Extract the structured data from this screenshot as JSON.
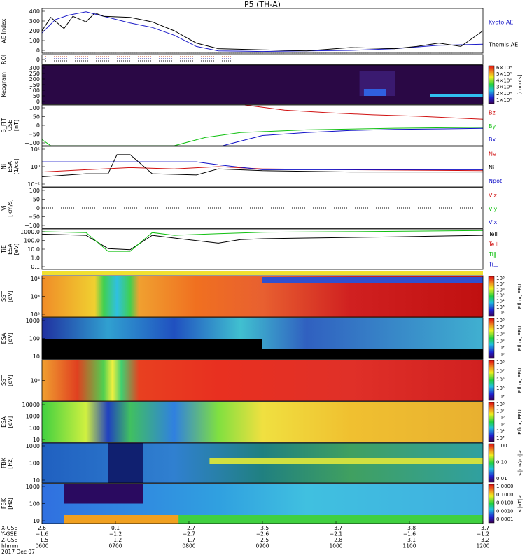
{
  "chart_data": {
    "type": "line",
    "title": "P5 (TH-A)",
    "panels": [
      {
        "id": "ae",
        "type": "line",
        "ylabel": [
          "AE Index"
        ],
        "ylim": [
          0,
          400
        ],
        "yticks": [
          "400",
          "300",
          "200",
          "100",
          "0"
        ],
        "legend": [
          {
            "label": "Kyoto AE",
            "color": "#1c1cc8"
          },
          {
            "label": "Themis AE",
            "color": "#000000"
          }
        ],
        "series": [
          {
            "name": "Kyoto AE",
            "color": "#1c1cc8",
            "x": [
              0,
              0.03,
              0.06,
              0.1,
              0.13,
              0.17,
              0.2,
              0.25,
              0.3,
              0.35,
              0.4,
              0.45,
              0.5,
              0.6,
              0.7,
              0.8,
              0.9,
              1.0
            ],
            "y": [
              180,
              300,
              340,
              370,
              340,
              300,
              270,
              230,
              160,
              60,
              20,
              18,
              15,
              20,
              25,
              40,
              70,
              80
            ]
          },
          {
            "name": "Themis AE",
            "color": "#000000",
            "x": [
              0,
              0.02,
              0.05,
              0.07,
              0.1,
              0.12,
              0.14,
              0.2,
              0.25,
              0.3,
              0.35,
              0.4,
              0.5,
              0.6,
              0.7,
              0.8,
              0.85,
              0.9,
              0.95,
              1.0
            ],
            "y": [
              200,
              320,
              220,
              330,
              280,
              360,
              330,
              320,
              280,
              200,
              90,
              40,
              30,
              20,
              50,
              40,
              60,
              90,
              60,
              200
            ]
          }
        ]
      },
      {
        "id": "roi",
        "type": "flags",
        "ylabel": [
          "ROI"
        ],
        "yticks": [
          "0"
        ]
      },
      {
        "id": "keogram",
        "type": "heatmap",
        "ylabel": [
          "Keogram"
        ],
        "ylim": [
          0,
          300
        ],
        "yticks": [
          "300",
          "250",
          "200",
          "150",
          "100",
          "50",
          "0"
        ],
        "colorbar": {
          "label": "[counts]",
          "ticks": [
            "6×10⁴",
            "5×10⁴",
            "4×10⁴",
            "3×10⁴",
            "2×10⁴",
            "1×10⁴"
          ]
        }
      },
      {
        "id": "bfit",
        "type": "line",
        "ylabel": [
          "B_FIT",
          "GSE",
          "[nT]"
        ],
        "ylim": [
          -100,
          100
        ],
        "yticks": [
          "100",
          "50",
          "0",
          "−50",
          "−100"
        ],
        "legend": [
          {
            "label": "Bz",
            "color": "#d01010"
          },
          {
            "label": "By",
            "color": "#10c010"
          },
          {
            "label": "Bx",
            "color": "#1010c8"
          }
        ],
        "series": [
          {
            "name": "Bz",
            "color": "#d01010",
            "x": [
              0.46,
              0.55,
              0.65,
              0.75,
              0.85,
              1.0
            ],
            "y": [
              100,
              75,
              62,
              52,
              45,
              30
            ]
          },
          {
            "name": "By",
            "color": "#10c010",
            "x": [
              0,
              0.02,
              0.15,
              0.3,
              0.37,
              0.45,
              0.6,
              0.8,
              1.0
            ],
            "y": [
              -70,
              -100,
              -100,
              -100,
              -60,
              -35,
              -22,
              -14,
              -10
            ]
          },
          {
            "name": "Bx",
            "color": "#1010c8",
            "x": [
              0.41,
              0.5,
              0.6,
              0.7,
              0.8,
              1.0
            ],
            "y": [
              -100,
              -50,
              -35,
              -25,
              -20,
              -15
            ]
          }
        ]
      },
      {
        "id": "ni",
        "type": "line",
        "ylabel": [
          "Ni",
          "ESA",
          "[1/cc]"
        ],
        "ylim": [
          0.01,
          100
        ],
        "yticks": [
          "10²",
          "10⁰",
          "10⁻²"
        ],
        "legend": [
          {
            "label": "Ne",
            "color": "#d01010"
          },
          {
            "label": "Ni",
            "color": "#000000"
          },
          {
            "label": "Npot",
            "color": "#1010c8"
          }
        ],
        "series": [
          {
            "name": "Ne",
            "color": "#d01010",
            "x": [
              0,
              0.1,
              0.2,
              0.3,
              0.4,
              0.5,
              0.7,
              1.0
            ],
            "y": [
              0.3,
              0.5,
              0.8,
              0.6,
              1.0,
              0.6,
              0.5,
              0.4
            ]
          },
          {
            "name": "Ni",
            "color": "#000000",
            "x": [
              0,
              0.1,
              0.15,
              0.17,
              0.2,
              0.25,
              0.35,
              0.4,
              0.5,
              0.7,
              1.0
            ],
            "y": [
              0.1,
              0.2,
              0.2,
              15,
              15,
              0.2,
              0.15,
              0.6,
              0.4,
              0.3,
              0.3
            ]
          },
          {
            "name": "Npot",
            "color": "#1010c8",
            "x": [
              0,
              0.1,
              0.17,
              0.2,
              0.35,
              0.4,
              0.5,
              1.0
            ],
            "y": [
              3,
              3,
              3,
              3,
              3,
              1.5,
              0.5,
              0.5
            ]
          }
        ]
      },
      {
        "id": "vi",
        "type": "line",
        "ylabel": [
          "Vi",
          "[km/s]"
        ],
        "ylim": [
          -150,
          150
        ],
        "yticks": [
          "100",
          "50",
          "0",
          "−50",
          "−100"
        ],
        "legend": [
          {
            "label": "Viz",
            "color": "#d01010"
          },
          {
            "label": "Viy",
            "color": "#10c010"
          },
          {
            "label": "Vix",
            "color": "#1010c8"
          }
        ],
        "series": []
      },
      {
        "id": "ti",
        "type": "line",
        "ylabel": [
          "TiE",
          "ESA",
          "[eV]"
        ],
        "ylim": [
          0.1,
          3000
        ],
        "yticks": [
          "1000.0",
          "100.0",
          "10.0",
          "1.0",
          "0.1"
        ],
        "legend": [
          {
            "label": "Tell",
            "color": "#000000"
          },
          {
            "label": "Te⊥",
            "color": "#d01010"
          },
          {
            "label": "Ti∥",
            "color": "#10c010"
          },
          {
            "label": "Ti⊥",
            "color": "#1010c8"
          }
        ],
        "series": [
          {
            "name": "Tell",
            "color": "#000000",
            "x": [
              0,
              0.1,
              0.15,
              0.2,
              0.25,
              0.3,
              0.4,
              0.45,
              0.5,
              0.6,
              0.8,
              1.0
            ],
            "y": [
              800,
              600,
              20,
              15,
              600,
              300,
              80,
              200,
              250,
              300,
              400,
              600
            ]
          },
          {
            "name": "Ti∥",
            "color": "#10c010",
            "x": [
              0,
              0.1,
              0.15,
              0.2,
              0.25,
              0.3,
              0.4,
              0.5,
              0.7,
              1.0
            ],
            "y": [
              1500,
              1200,
              10,
              10,
              1200,
              600,
              900,
              1300,
              1500,
              2000
            ]
          }
        ]
      },
      {
        "id": "sst_i",
        "type": "heatmap",
        "ylabel": [
          "SST",
          "[eV]"
        ],
        "ylim": [
          100,
          100000
        ],
        "yticks": [
          "10⁴",
          "10³",
          "10²"
        ],
        "colorbar": {
          "label": "Eflux, EFU",
          "ticks": [
            "10⁸",
            "10⁷",
            "10⁶",
            "10⁵",
            "10⁴",
            "10³",
            "10²"
          ]
        }
      },
      {
        "id": "esa_i",
        "type": "heatmap",
        "ylabel": [
          "ESA",
          "[eV]"
        ],
        "ylim": [
          10,
          10000
        ],
        "yticks": [
          "1000",
          "100",
          "10"
        ],
        "colorbar": {
          "label": "Eflux, EFU",
          "ticks": [
            "10⁸",
            "10⁷",
            "10⁶",
            "10⁵",
            "10⁴",
            "10³"
          ]
        }
      },
      {
        "id": "sst_e",
        "type": "heatmap",
        "ylabel": [
          "SST",
          "[eV]"
        ],
        "ylim": [
          10000,
          1000000
        ],
        "yticks": [
          "10⁵"
        ],
        "colorbar": {
          "label": "Eflux, EFU",
          "ticks": [
            "10⁸",
            "10⁷",
            "10⁶",
            "10⁵",
            "10⁴"
          ]
        }
      },
      {
        "id": "esa_e",
        "type": "heatmap",
        "ylabel": [
          "ESA",
          "[eV]"
        ],
        "ylim": [
          10,
          30000
        ],
        "yticks": [
          "10000",
          "1000",
          "100",
          "10"
        ],
        "colorbar": {
          "label": "Eflux, EFU",
          "ticks": [
            "10⁸",
            "10⁷",
            "10⁶",
            "10⁵",
            "10⁴",
            "10³"
          ]
        }
      },
      {
        "id": "fbk_e",
        "type": "heatmap",
        "ylabel": [
          "FBK",
          "[Hz]"
        ],
        "ylim": [
          5,
          2000
        ],
        "yticks": [
          "1000",
          "100",
          "10"
        ],
        "colorbar": {
          "label": "<|mV/m|>",
          "ticks": [
            "1.00",
            "0.10",
            "0.01"
          ]
        }
      },
      {
        "id": "fbk_b",
        "type": "heatmap",
        "ylabel": [
          "FBK",
          "[Hz]"
        ],
        "ylim": [
          5,
          2000
        ],
        "yticks": [
          "1000",
          "100",
          "10"
        ],
        "colorbar": {
          "label": "<|nT|>",
          "ticks": [
            "1.0000",
            "0.1000",
            "0.0100",
            "0.0010",
            "0.0001"
          ]
        }
      }
    ],
    "x_axis": {
      "row_labels": [
        "X-GSE",
        "Y-GSE",
        "Z-GSE",
        "hhmm",
        "2017 Dec 07"
      ],
      "ticks": [
        {
          "x": 0,
          "vals": [
            "2.6",
            "−1.6",
            "−1.5",
            "0600"
          ]
        },
        {
          "x": 0.1667,
          "vals": [
            "0.1",
            "−1.2",
            "−1.2",
            "0700"
          ]
        },
        {
          "x": 0.3333,
          "vals": [
            "−2.7",
            "−2.7",
            "−1.7",
            "0800"
          ]
        },
        {
          "x": 0.5,
          "vals": [
            "−3.5",
            "−2.6",
            "−2.5",
            "0900"
          ]
        },
        {
          "x": 0.6667,
          "vals": [
            "−3.7",
            "−2.1",
            "−2.8",
            "1000"
          ]
        },
        {
          "x": 0.8333,
          "vals": [
            "−3.8",
            "−1.6",
            "−3.1",
            "1100"
          ]
        },
        {
          "x": 1,
          "vals": [
            "−3.7",
            "−1.2",
            "−3.2",
            "1200"
          ]
        }
      ]
    }
  }
}
